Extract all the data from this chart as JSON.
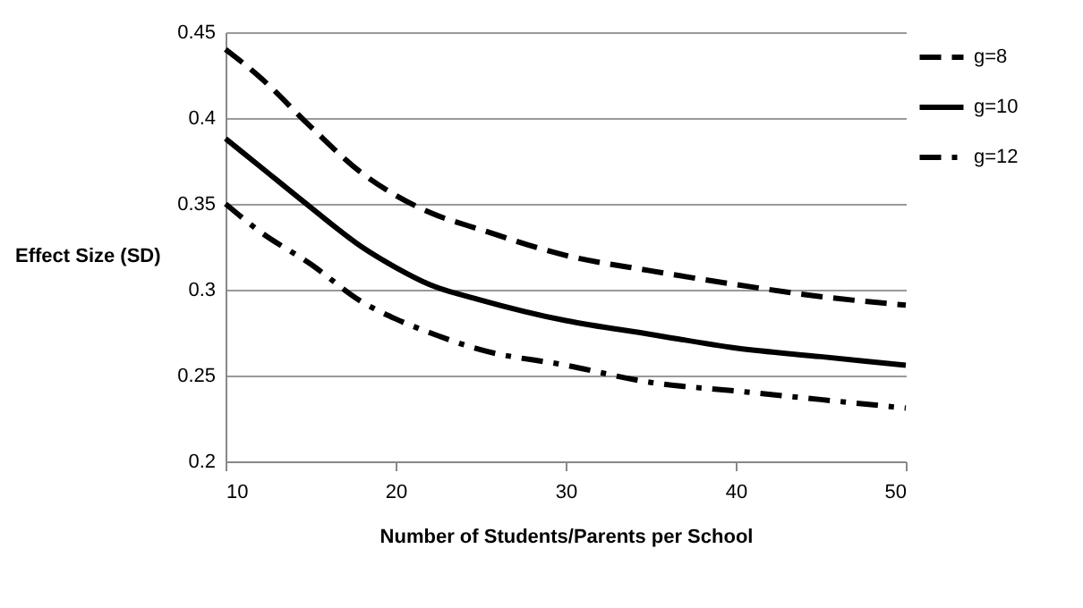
{
  "chart_data": {
    "type": "line",
    "xlabel": "Number of Students/Parents per School",
    "ylabel": "Effect Size (SD)",
    "xlim": [
      10,
      50
    ],
    "xticks": [
      10,
      20,
      30,
      40,
      50
    ],
    "ylim": [
      0.2,
      0.45
    ],
    "yticks": [
      0.2,
      0.25,
      0.3,
      0.35,
      0.4,
      0.45
    ],
    "grid": "y",
    "legend": "right",
    "marker": "none",
    "series": [
      {
        "name": "g=8",
        "color": "#000000",
        "line_style": "dashed",
        "x": [
          10,
          12,
          15,
          18,
          20,
          22,
          25,
          30,
          35,
          40,
          45,
          50
        ],
        "values": [
          0.44,
          0.424,
          0.395,
          0.368,
          0.355,
          0.345,
          0.335,
          0.32,
          0.311,
          0.303,
          0.296,
          0.291
        ]
      },
      {
        "name": "g=10",
        "color": "#000000",
        "line_style": "solid",
        "x": [
          10,
          12,
          15,
          18,
          20,
          22,
          25,
          30,
          35,
          40,
          45,
          50
        ],
        "values": [
          0.388,
          0.372,
          0.348,
          0.325,
          0.313,
          0.303,
          0.294,
          0.282,
          0.274,
          0.266,
          0.261,
          0.256
        ]
      },
      {
        "name": "g=12",
        "color": "#000000",
        "line_style": "dashdot",
        "x": [
          10,
          12,
          15,
          18,
          20,
          22,
          25,
          30,
          35,
          40,
          45,
          50
        ],
        "values": [
          0.35,
          0.334,
          0.315,
          0.293,
          0.283,
          0.275,
          0.265,
          0.256,
          0.246,
          0.241,
          0.236,
          0.231
        ]
      }
    ]
  }
}
